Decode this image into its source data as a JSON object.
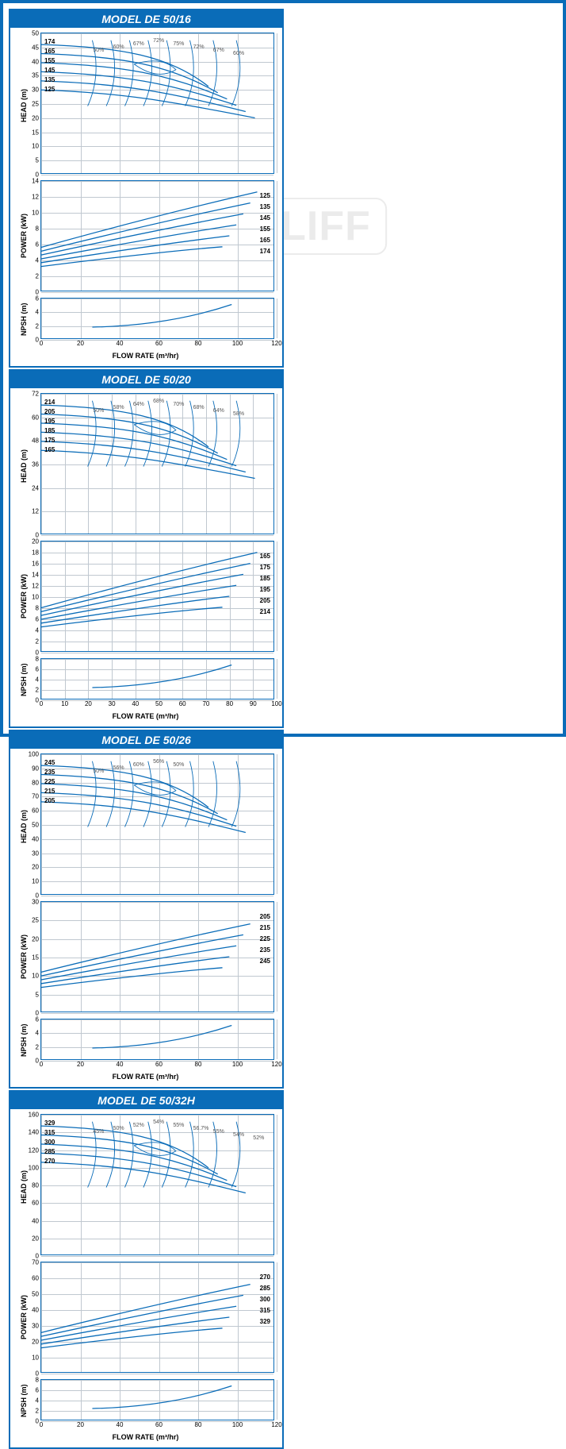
{
  "watermark": "DAYLIFF",
  "panels": [
    {
      "title": "MODEL DE 50/16",
      "xlabel": "FLOW RATE (m³/hr)",
      "head": {
        "ylabel": "HEAD (m)",
        "ylim": [
          0,
          50
        ],
        "ytick_step": 5,
        "xlim": [
          0,
          120
        ],
        "xtick_step": 20,
        "curves_labels": [
          "174",
          "165",
          "155",
          "145",
          "135",
          "125"
        ],
        "eff_labels": [
          "50%",
          "60%",
          "67%",
          "72%",
          "75%",
          "72%",
          "67%",
          "60%"
        ],
        "line_color": "#0a6cb8",
        "line_width": 1.3,
        "grid_color": "#c0c8d0"
      },
      "power": {
        "ylabel": "POWER (kW)",
        "ylim": [
          0,
          14
        ],
        "ytick_step": 2,
        "xlim": [
          0,
          120
        ],
        "xtick_step": 20,
        "curves_labels": [
          "174",
          "165",
          "155",
          "145",
          "135",
          "125"
        ],
        "line_color": "#0a6cb8",
        "line_width": 1.3
      },
      "npsh": {
        "ylabel": "NPSH (m)",
        "ylim": [
          0,
          6
        ],
        "ytick_step": 2,
        "xlim": [
          0,
          120
        ],
        "xtick_step": 20,
        "line_color": "#0a6cb8",
        "line_width": 1.3
      }
    },
    {
      "title": "MODEL DE 50/20",
      "xlabel": "FLOW RATE (m³/hr)",
      "head": {
        "ylabel": "HEAD (m)",
        "ylim": [
          0,
          72
        ],
        "ytick_step": 12,
        "xlim": [
          0,
          100
        ],
        "xtick_step": 10,
        "curves_labels": [
          "214",
          "205",
          "195",
          "185",
          "175",
          "165"
        ],
        "eff_labels": [
          "50%",
          "58%",
          "64%",
          "68%",
          "70%",
          "68%",
          "64%",
          "58%"
        ],
        "line_color": "#0a6cb8",
        "line_width": 1.3,
        "grid_color": "#c0c8d0"
      },
      "power": {
        "ylabel": "POWER (kW)",
        "ylim": [
          0,
          20
        ],
        "ytick_step": 2,
        "xlim": [
          0,
          100
        ],
        "xtick_step": 10,
        "curves_labels": [
          "214",
          "205",
          "195",
          "185",
          "175",
          "165"
        ],
        "line_color": "#0a6cb8",
        "line_width": 1.3
      },
      "npsh": {
        "ylabel": "NPSH (m)",
        "ylim": [
          0,
          8
        ],
        "ytick_step": 2,
        "xlim": [
          0,
          100
        ],
        "xtick_step": 10,
        "line_color": "#0a6cb8",
        "line_width": 1.3
      }
    },
    {
      "title": "MODEL DE 50/26",
      "xlabel": "FLOW RATE (m³/hr)",
      "head": {
        "ylabel": "HEAD (m)",
        "ylim": [
          0,
          100
        ],
        "ytick_step": 10,
        "xlim": [
          0,
          120
        ],
        "xtick_step": 20,
        "curves_labels": [
          "245",
          "235",
          "225",
          "215",
          "205"
        ],
        "eff_labels": [
          "50%",
          "56%",
          "60%",
          "56%",
          "50%"
        ],
        "line_color": "#0a6cb8",
        "line_width": 1.3,
        "grid_color": "#c0c8d0"
      },
      "power": {
        "ylabel": "POWER (kW)",
        "ylim": [
          0,
          30
        ],
        "ytick_step": 5,
        "xlim": [
          0,
          120
        ],
        "xtick_step": 20,
        "curves_labels": [
          "245",
          "235",
          "225",
          "215",
          "205"
        ],
        "line_color": "#0a6cb8",
        "line_width": 1.3
      },
      "npsh": {
        "ylabel": "NPSH (m)",
        "ylim": [
          0,
          6
        ],
        "ytick_step": 2,
        "xlim": [
          0,
          120
        ],
        "xtick_step": 20,
        "line_color": "#0a6cb8",
        "line_width": 1.3
      }
    },
    {
      "title": "MODEL DE 50/32H",
      "xlabel": "FLOW RATE (m³/hr)",
      "head": {
        "ylabel": "HEAD (m)",
        "ylim": [
          0,
          160
        ],
        "ytick_step": 20,
        "xlim": [
          0,
          120
        ],
        "xtick_step": 20,
        "curves_labels": [
          "329",
          "315",
          "300",
          "285",
          "270"
        ],
        "eff_labels": [
          "45%",
          "50%",
          "52%",
          "54%",
          "55%",
          "56.7%",
          "55%",
          "54%",
          "52%"
        ],
        "line_color": "#0a6cb8",
        "line_width": 1.3,
        "grid_color": "#c0c8d0"
      },
      "power": {
        "ylabel": "POWER (kW)",
        "ylim": [
          0,
          70
        ],
        "ytick_step": 10,
        "xlim": [
          0,
          120
        ],
        "xtick_step": 20,
        "curves_labels": [
          "329",
          "315",
          "300",
          "285",
          "270"
        ],
        "line_color": "#0a6cb8",
        "line_width": 1.3
      },
      "npsh": {
        "ylabel": "NPSH (m)",
        "ylim": [
          0,
          8
        ],
        "ytick_step": 2,
        "xlim": [
          0,
          120
        ],
        "xtick_step": 20,
        "line_color": "#0a6cb8",
        "line_width": 1.3
      }
    }
  ]
}
